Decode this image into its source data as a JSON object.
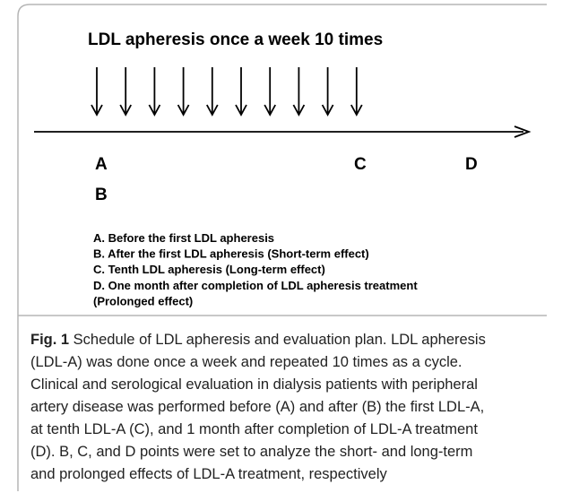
{
  "title": "LDL apheresis  once a week  10 times",
  "points": [
    "A",
    "B",
    "C",
    "D"
  ],
  "legend": [
    "A. Before the first LDL apheresis",
    "B. After the first LDL apheresis (Short-term effect)",
    "C. Tenth LDL apheresis  (Long-term effect)",
    "D. One month after completion of LDL apheresis treatment",
    "(Prolonged effect)"
  ],
  "caption": {
    "label": "Fig. 1",
    "lines": [
      " Schedule of LDL apheresis and evaluation plan. LDL apheresis",
      "(LDL-A) was done once a week and repeated 10 times as a cycle.",
      "Clinical and serological evaluation in dialysis patients with peripheral",
      "artery disease was performed before (A) and after (B) the first LDL-A,",
      "at tenth LDL-A (C), and 1 month after completion of LDL-A treatment",
      "(D). B, C, and D points were set to analyze the short- and long-term",
      "and prolonged effects of LDL-A treatment, respectively"
    ]
  }
}
